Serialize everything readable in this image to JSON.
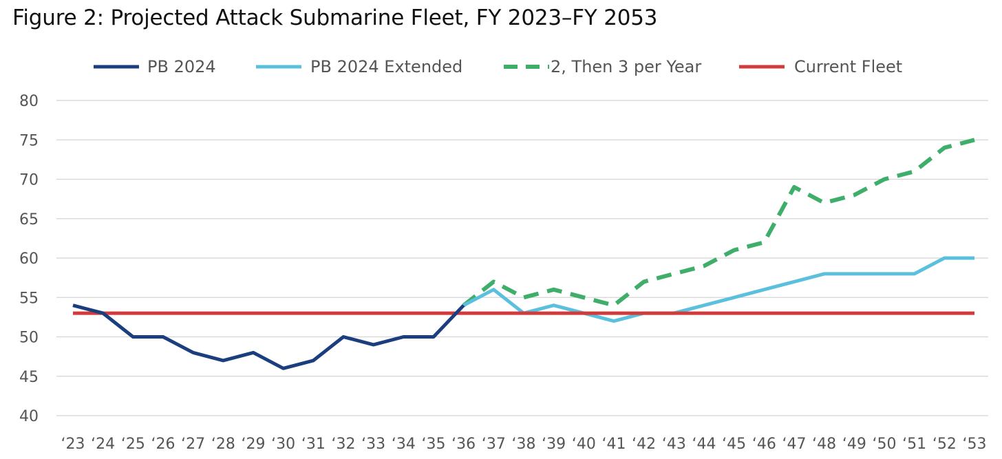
{
  "chart_data": {
    "type": "line",
    "title": "Figure 2: Projected Attack Submarine Fleet, FY 2023–FY 2053",
    "xlabel": "",
    "ylabel": "",
    "ylim": [
      40,
      80
    ],
    "yticks": [
      40,
      45,
      50,
      55,
      60,
      65,
      70,
      75,
      80
    ],
    "grid": true,
    "legend_position": "top",
    "categories": [
      "‘23",
      "‘24",
      "‘25",
      "‘26",
      "‘27",
      "‘28",
      "‘29",
      "‘30",
      "‘31",
      "‘32",
      "‘33",
      "‘34",
      "‘35",
      "‘36",
      "‘37",
      "‘38",
      "‘39",
      "‘40",
      "‘41",
      "‘42",
      "‘43",
      "‘44",
      "‘45",
      "‘46",
      "‘47",
      "‘48",
      "‘49",
      "‘50",
      "‘51",
      "‘52",
      "‘53"
    ],
    "series": [
      {
        "name": "PB 2024",
        "color": "#1b3f7e",
        "style": "solid",
        "values": [
          54,
          53,
          50,
          50,
          48,
          47,
          48,
          46,
          47,
          50,
          49,
          50,
          50,
          54,
          null,
          null,
          null,
          null,
          null,
          null,
          null,
          null,
          null,
          null,
          null,
          null,
          null,
          null,
          null,
          null,
          null
        ]
      },
      {
        "name": "PB 2024 Extended",
        "color": "#5bc0de",
        "style": "solid",
        "values": [
          null,
          null,
          null,
          null,
          null,
          null,
          null,
          null,
          null,
          null,
          null,
          null,
          null,
          54,
          56,
          53,
          54,
          53,
          52,
          53,
          53,
          54,
          55,
          56,
          57,
          58,
          58,
          58,
          58,
          60,
          60
        ]
      },
      {
        "name": "2, Then 3 per Year",
        "color": "#3fae6b",
        "style": "dashed",
        "values": [
          null,
          null,
          null,
          null,
          null,
          null,
          null,
          null,
          null,
          null,
          null,
          null,
          null,
          54,
          57,
          55,
          56,
          55,
          54,
          57,
          58,
          59,
          61,
          62,
          69,
          67,
          68,
          70,
          71,
          74,
          75
        ]
      },
      {
        "name": "Current Fleet",
        "color": "#d13b3b",
        "style": "solid",
        "values": [
          53,
          53,
          53,
          53,
          53,
          53,
          53,
          53,
          53,
          53,
          53,
          53,
          53,
          53,
          53,
          53,
          53,
          53,
          53,
          53,
          53,
          53,
          53,
          53,
          53,
          53,
          53,
          53,
          53,
          53,
          53
        ]
      }
    ]
  }
}
